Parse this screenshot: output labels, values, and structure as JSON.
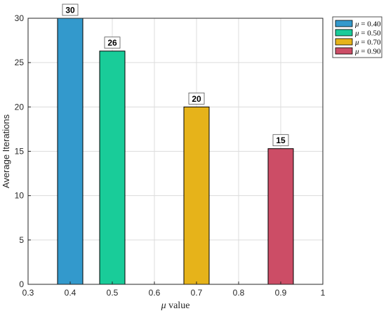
{
  "chart_data": {
    "type": "bar",
    "x": [
      0.4,
      0.5,
      0.7,
      0.9
    ],
    "values": [
      30,
      26.3,
      20,
      15.3
    ],
    "data_labels": [
      "30",
      "26",
      "20",
      "15"
    ],
    "bar_width": 0.06,
    "colors": [
      "#3399cc",
      "#19cc99",
      "#e6b31a",
      "#cc4d66"
    ],
    "xlabel": "value",
    "xlabel_symbol": "μ",
    "ylabel": "Average Iterations",
    "xlim": [
      0.3,
      1.0
    ],
    "ylim": [
      0,
      30
    ],
    "xticks": [
      0.3,
      0.4,
      0.5,
      0.6,
      0.7,
      0.8,
      0.9,
      1.0
    ],
    "xtick_labels": [
      "0.3",
      "0.4",
      "0.5",
      "0.6",
      "0.7",
      "0.8",
      "0.9",
      "1"
    ],
    "yticks": [
      0,
      5,
      10,
      15,
      20,
      25,
      30
    ],
    "ytick_labels": [
      "0",
      "5",
      "10",
      "15",
      "20",
      "25",
      "30"
    ],
    "grid": true,
    "legend": {
      "placement": "outside-top-right",
      "entries": [
        {
          "symbol": "μ",
          "value": "= 0.40"
        },
        {
          "symbol": "μ",
          "value": "= 0.50"
        },
        {
          "symbol": "μ",
          "value": "= 0.70"
        },
        {
          "symbol": "μ",
          "value": "= 0.90"
        }
      ]
    }
  }
}
